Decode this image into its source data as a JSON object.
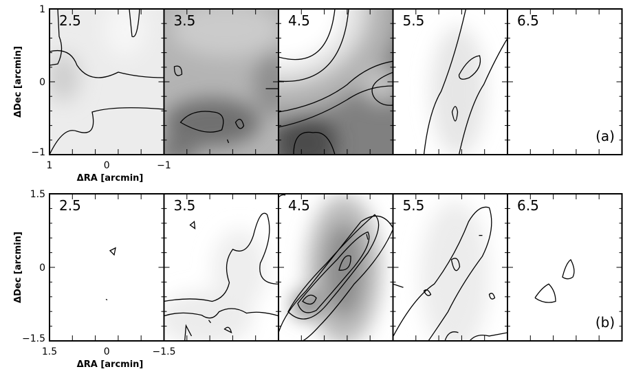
{
  "panels": {
    "a": {
      "channels": [
        "2.5",
        "3.5",
        "4.5",
        "5.5",
        "6.5"
      ],
      "tag": "(a)",
      "y_ticks": [
        "1",
        "0",
        "−1"
      ],
      "x_ticks": [
        "1",
        "0",
        "−1"
      ],
      "y_title": "ΔDec [arcmin]",
      "x_title": "ΔRA [arcmin]"
    },
    "b": {
      "channels": [
        "2.5",
        "3.5",
        "4.5",
        "5.5",
        "6.5"
      ],
      "tag": "(b)",
      "y_ticks": [
        "1.5",
        "0",
        "−1.5"
      ],
      "x_ticks": [
        "1.5",
        "0",
        "−1.5"
      ],
      "y_title": "ΔDec [arcmin]",
      "x_title": "ΔRA [arcmin]"
    }
  }
}
